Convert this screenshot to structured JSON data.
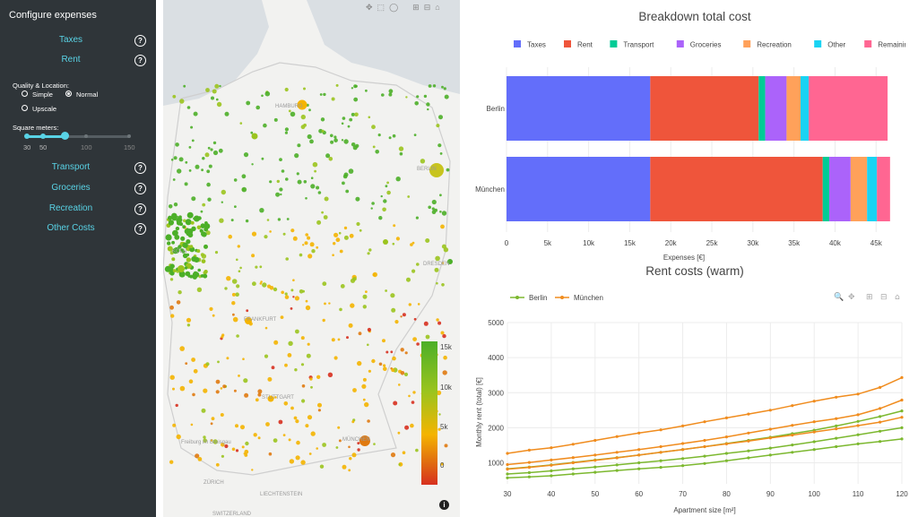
{
  "sidebar": {
    "title": "Configure expenses",
    "items": [
      {
        "label": "Taxes",
        "help": "?"
      },
      {
        "label": "Rent",
        "help": "?"
      },
      {
        "label": "Transport",
        "help": "?"
      },
      {
        "label": "Groceries",
        "help": "?"
      },
      {
        "label": "Recreation",
        "help": "?"
      },
      {
        "label": "Other Costs",
        "help": "?"
      }
    ],
    "quality_label": "Quality & Location:",
    "quality_options": [
      "Simple",
      "Normal",
      "Upscale"
    ],
    "quality_selected": "Normal",
    "sqm_label": "Square meters:",
    "sqm_ticks": [
      "30",
      "50",
      "100",
      "150"
    ],
    "sqm_range": [
      30,
      50
    ],
    "sqm_handle": 80
  },
  "map": {
    "labels": [
      "HAMBURG",
      "BERLIN",
      "DRESDEN",
      "KÖLN",
      "FRANKFURT",
      "STUTTGART",
      "MÜNCHEN",
      "ZÜRICH",
      "LIECHTENSTEIN",
      "SWITZERLAND",
      "Freiburg im Breisgau"
    ],
    "colorbar_ticks": [
      "15k",
      "10k",
      "5k",
      "0"
    ],
    "colors": {
      "low": "#d7301f",
      "mid": "#f4b400",
      "high": "#4caf28"
    },
    "info_icon": "info-icon",
    "toolbar_icons": [
      "pan-icon",
      "box-select-icon",
      "lasso-icon",
      "zoom-in-icon",
      "zoom-out-icon",
      "home-icon"
    ]
  },
  "chart_data": [
    {
      "type": "bar",
      "orientation": "horizontal",
      "stacked": true,
      "title": "Breakdown total cost",
      "xlabel": "Expenses [€]",
      "ylabel": "",
      "categories": [
        "Berlin",
        "München"
      ],
      "xlim": [
        0,
        46500
      ],
      "xticks": [
        "0",
        "5k",
        "10k",
        "15k",
        "20k",
        "25k",
        "30k",
        "35k",
        "40k",
        "45k"
      ],
      "legend_position": "top",
      "series": [
        {
          "name": "Taxes",
          "color": "#636efa",
          "values": [
            17500,
            17500
          ]
        },
        {
          "name": "Rent",
          "color": "#ef553b",
          "values": [
            13200,
            21000
          ]
        },
        {
          "name": "Transport",
          "color": "#00cc96",
          "values": [
            800,
            800
          ]
        },
        {
          "name": "Groceries",
          "color": "#ab63fa",
          "values": [
            2600,
            2600
          ]
        },
        {
          "name": "Recreation",
          "color": "#ffa15a",
          "values": [
            1700,
            2000
          ]
        },
        {
          "name": "Other",
          "color": "#19d3f3",
          "values": [
            1000,
            1200
          ]
        },
        {
          "name": "Remaining",
          "color": "#ff6692",
          "values": [
            9600,
            1600
          ]
        }
      ]
    },
    {
      "type": "line",
      "title": "Rent costs (warm)",
      "xlabel": "Apartment size [m²]",
      "ylabel": "Monthly rent (total) [€]",
      "xlim": [
        30,
        120
      ],
      "ylim": [
        400,
        5000
      ],
      "xticks": [
        30,
        40,
        50,
        60,
        70,
        80,
        90,
        100,
        110,
        120
      ],
      "yticks": [
        1000,
        2000,
        3000,
        4000,
        5000
      ],
      "legend_position": "top-left",
      "x": [
        30,
        35,
        40,
        45,
        50,
        55,
        60,
        65,
        70,
        75,
        80,
        85,
        90,
        95,
        100,
        105,
        110,
        115,
        120
      ],
      "series": [
        {
          "name": "Berlin",
          "color": "#7cb82f",
          "values": [
            570,
            600,
            630,
            680,
            730,
            780,
            830,
            870,
            920,
            980,
            1060,
            1140,
            1220,
            1300,
            1380,
            1460,
            1540,
            1610,
            1680
          ]
        },
        {
          "name": "Berlin",
          "color": "#7cb82f",
          "values": [
            680,
            720,
            770,
            830,
            880,
            940,
            1000,
            1060,
            1120,
            1190,
            1270,
            1340,
            1420,
            1510,
            1600,
            1700,
            1800,
            1900,
            2000
          ]
        },
        {
          "name": "Berlin",
          "color": "#7cb82f",
          "values": [
            830,
            880,
            940,
            1010,
            1080,
            1150,
            1220,
            1300,
            1380,
            1460,
            1550,
            1640,
            1730,
            1830,
            1930,
            2050,
            2180,
            2320,
            2480
          ]
        },
        {
          "name": "München",
          "color": "#f08c1e",
          "values": [
            820,
            870,
            930,
            1000,
            1070,
            1140,
            1220,
            1300,
            1380,
            1460,
            1540,
            1620,
            1710,
            1790,
            1880,
            1970,
            2060,
            2160,
            2300
          ]
        },
        {
          "name": "München",
          "color": "#f08c1e",
          "values": [
            950,
            1010,
            1080,
            1150,
            1220,
            1300,
            1380,
            1460,
            1550,
            1640,
            1740,
            1850,
            1960,
            2070,
            2170,
            2260,
            2370,
            2550,
            2790
          ]
        },
        {
          "name": "München",
          "color": "#f08c1e",
          "values": [
            1270,
            1360,
            1430,
            1530,
            1640,
            1750,
            1850,
            1940,
            2050,
            2170,
            2280,
            2390,
            2500,
            2630,
            2760,
            2870,
            2960,
            3150,
            3430
          ]
        }
      ],
      "legend": [
        "Berlin",
        "München"
      ]
    }
  ]
}
